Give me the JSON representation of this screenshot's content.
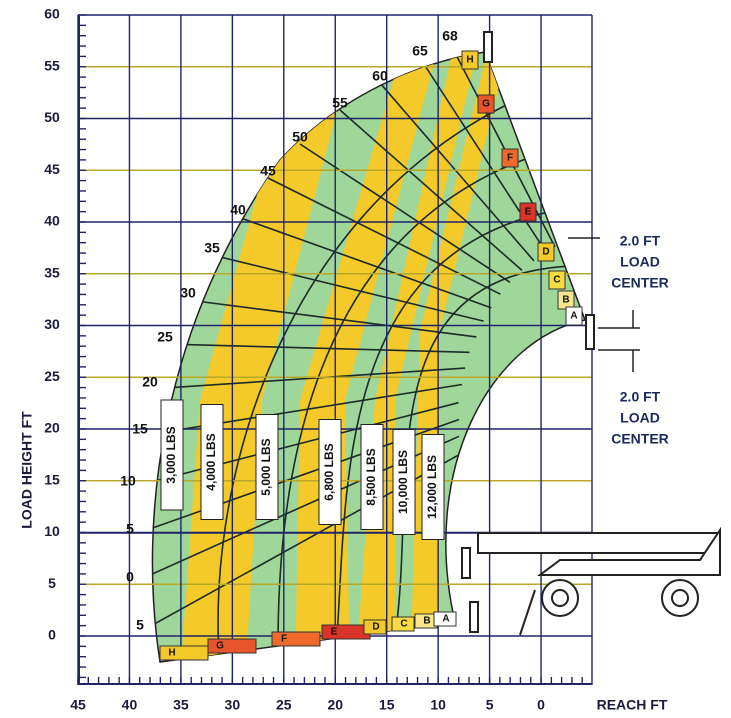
{
  "axes": {
    "y_label": "LOAD HEIGHT  FT",
    "x_label": "REACH  FT",
    "y_ticks": [
      "0",
      "5",
      "10",
      "15",
      "20",
      "25",
      "30",
      "35",
      "40",
      "45",
      "50",
      "55",
      "60"
    ],
    "x_ticks": [
      "45",
      "40",
      "35",
      "30",
      "25",
      "20",
      "15",
      "10",
      "5",
      "0"
    ]
  },
  "boom_angles": [
    "68",
    "65",
    "60",
    "55",
    "50",
    "45",
    "40",
    "35",
    "30",
    "25",
    "20",
    "15",
    "10",
    "5",
    "0",
    "5"
  ],
  "extensions_bottom": [
    "H",
    "G",
    "F",
    "E",
    "D",
    "C",
    "B",
    "A"
  ],
  "extensions_right": [
    "H",
    "G",
    "F",
    "E",
    "D",
    "C",
    "B",
    "A"
  ],
  "loads": [
    "3,000 LBS",
    "4,000 LBS",
    "5,000 LBS",
    "6,800 LBS",
    "8,500 LBS",
    "10,000 LBS",
    "12,000 LBS"
  ],
  "load_center_top": [
    "2.0 FT",
    "LOAD",
    "CENTER"
  ],
  "load_center_bottom": [
    "2.0 FT",
    "LOAD",
    "CENTER"
  ]
}
